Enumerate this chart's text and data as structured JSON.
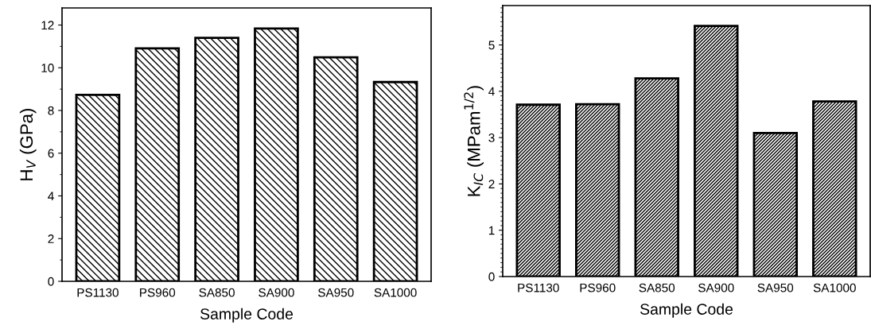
{
  "chart_data": [
    {
      "type": "bar",
      "categories": [
        "PS1130",
        "PS960",
        "SA850",
        "SA900",
        "SA950",
        "SA1000"
      ],
      "values": [
        8.73,
        10.91,
        11.4,
        11.84,
        10.49,
        9.33
      ],
      "color": "#000000",
      "xlabel": "Sample Code",
      "ylabel": "H$_{V}$ (GPa)",
      "ylim": [
        0,
        12.8
      ],
      "yticks": [
        0,
        2,
        4,
        6,
        8,
        10,
        12
      ],
      "grid": false,
      "legend": false
    },
    {
      "type": "bar",
      "categories": [
        "PS1130",
        "PS960",
        "SA850",
        "SA900",
        "SA950",
        "SA1000"
      ],
      "values": [
        3.71,
        3.72,
        4.28,
        5.41,
        3.1,
        3.78
      ],
      "color": "#000000",
      "xlabel": "Sample Code",
      "ylabel": "K$_{IC}$ (MPam$^{1/2}$)",
      "ylim": [
        0,
        5.85
      ],
      "yticks": [
        0,
        1,
        2,
        3,
        4,
        5
      ],
      "grid": false,
      "legend": false
    }
  ]
}
